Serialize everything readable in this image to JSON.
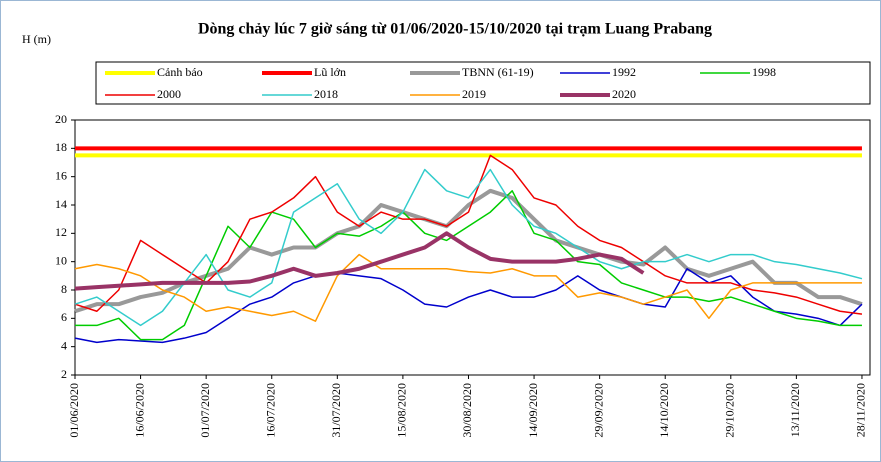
{
  "chart_data": {
    "type": "line",
    "title": "Dòng chảy lúc 7 giờ sáng từ 01/06/2020-15/10/2020 tại trạm Luang Prabang",
    "y_label": "H (m)",
    "categories": [
      "01/06/2020",
      null,
      null,
      "16/06/2020",
      null,
      null,
      "01/07/2020",
      null,
      null,
      "16/07/2020",
      null,
      null,
      "31/07/2020",
      null,
      null,
      "15/08/2020",
      null,
      null,
      "30/08/2020",
      null,
      null,
      "14/09/2020",
      null,
      null,
      "29/09/2020",
      null,
      null,
      "14/10/2020",
      null,
      null,
      "29/10/2020",
      null,
      null,
      "13/11/2020",
      null,
      null,
      "28/11/2020"
    ],
    "ylim": [
      2,
      20
    ],
    "yticks": [
      2,
      4,
      6,
      8,
      10,
      12,
      14,
      16,
      18,
      20
    ],
    "series": [
      {
        "name": "Cảnh báo",
        "color": "#ffff00",
        "width": 4,
        "values": [
          17.5,
          17.5,
          17.5,
          17.5,
          17.5,
          17.5,
          17.5,
          17.5,
          17.5,
          17.5,
          17.5,
          17.5,
          17.5,
          17.5,
          17.5,
          17.5,
          17.5,
          17.5,
          17.5,
          17.5,
          17.5,
          17.5,
          17.5,
          17.5,
          17.5,
          17.5,
          17.5,
          17.5,
          17.5,
          17.5,
          17.5,
          17.5,
          17.5,
          17.5,
          17.5,
          17.5,
          17.5
        ]
      },
      {
        "name": "Lũ lớn",
        "color": "#ff0000",
        "width": 4,
        "values": [
          18,
          18,
          18,
          18,
          18,
          18,
          18,
          18,
          18,
          18,
          18,
          18,
          18,
          18,
          18,
          18,
          18,
          18,
          18,
          18,
          18,
          18,
          18,
          18,
          18,
          18,
          18,
          18,
          18,
          18,
          18,
          18,
          18,
          18,
          18,
          18,
          18
        ]
      },
      {
        "name": "TBNN (61-19)",
        "color": "#999999",
        "width": 4,
        "values": [
          6.5,
          7,
          7,
          7.5,
          7.8,
          8.5,
          9,
          9.5,
          11,
          10.5,
          11,
          11,
          12,
          12.5,
          14,
          13.5,
          13,
          12.5,
          14,
          15,
          14.5,
          13,
          11.5,
          11,
          10.5,
          10,
          9.8,
          11,
          9.5,
          9,
          9.5,
          10,
          8.5,
          8.5,
          7.5,
          7.5,
          7
        ]
      },
      {
        "name": "1992",
        "color": "#0000cc",
        "width": 1.5,
        "values": [
          4.6,
          4.3,
          4.5,
          4.4,
          4.3,
          4.6,
          5,
          6,
          7,
          7.5,
          8.5,
          9,
          9.2,
          9,
          8.8,
          8,
          7,
          6.8,
          7.5,
          8,
          7.5,
          7.5,
          8,
          9,
          8,
          7.5,
          7,
          6.8,
          9.5,
          8.5,
          9,
          7.5,
          6.5,
          6.3,
          6,
          5.5,
          7
        ]
      },
      {
        "name": "1998",
        "color": "#00cc00",
        "width": 1.5,
        "values": [
          5.5,
          5.5,
          6,
          4.5,
          4.5,
          5.5,
          9,
          12.5,
          11,
          13.5,
          13,
          11,
          12,
          11.8,
          12.5,
          13.5,
          12,
          11.5,
          12.5,
          13.5,
          15,
          12,
          11.5,
          10,
          9.8,
          8.5,
          8,
          7.5,
          7.5,
          7.2,
          7.5,
          7,
          6.5,
          6,
          5.8,
          5.5,
          5.5
        ]
      },
      {
        "name": "2000",
        "color": "#ee0000",
        "width": 1.5,
        "values": [
          7,
          6.5,
          8,
          11.5,
          10.5,
          9.5,
          8.5,
          10,
          13,
          13.5,
          14.5,
          16,
          13.5,
          12.5,
          13.5,
          13,
          13,
          12.5,
          13.5,
          17.5,
          16.5,
          14.5,
          14,
          12.5,
          11.5,
          11,
          10,
          9,
          8.5,
          8.5,
          8.5,
          8,
          7.8,
          7.5,
          7,
          6.5,
          6.3
        ]
      },
      {
        "name": "2018",
        "color": "#33cccc",
        "width": 1.5,
        "values": [
          7,
          7.5,
          6.5,
          5.5,
          6.5,
          8.5,
          10.5,
          8,
          7.5,
          8.5,
          13.5,
          14.5,
          15.5,
          13,
          12,
          13.5,
          16.5,
          15,
          14.5,
          16.5,
          14,
          12.5,
          12,
          11,
          10,
          9.5,
          10,
          10,
          10.5,
          10,
          10.5,
          10.5,
          10,
          9.8,
          9.5,
          9.2,
          8.8
        ]
      },
      {
        "name": "2019",
        "color": "#ff9900",
        "width": 1.5,
        "values": [
          9.5,
          9.8,
          9.5,
          9,
          8,
          7.5,
          6.5,
          6.8,
          6.5,
          6.2,
          6.5,
          5.8,
          9,
          10.5,
          9.5,
          9.5,
          9.5,
          9.5,
          9.3,
          9.2,
          9.5,
          9,
          9,
          7.5,
          7.8,
          7.5,
          7,
          7.5,
          8,
          6,
          8,
          8.5,
          8.5,
          8.5,
          8.5,
          8.5,
          8.5
        ]
      },
      {
        "name": "2020",
        "color": "#993366",
        "width": 4,
        "values": [
          8.1,
          8.2,
          8.3,
          8.4,
          8.5,
          8.5,
          8.5,
          8.5,
          8.6,
          9,
          9.5,
          9,
          9.2,
          9.5,
          10,
          10.5,
          11,
          12,
          11,
          10.2,
          10,
          10,
          10,
          10.2,
          10.5,
          10.2,
          9.2,
          null,
          null,
          null,
          null,
          null,
          null,
          null,
          null,
          null,
          null
        ]
      }
    ]
  }
}
